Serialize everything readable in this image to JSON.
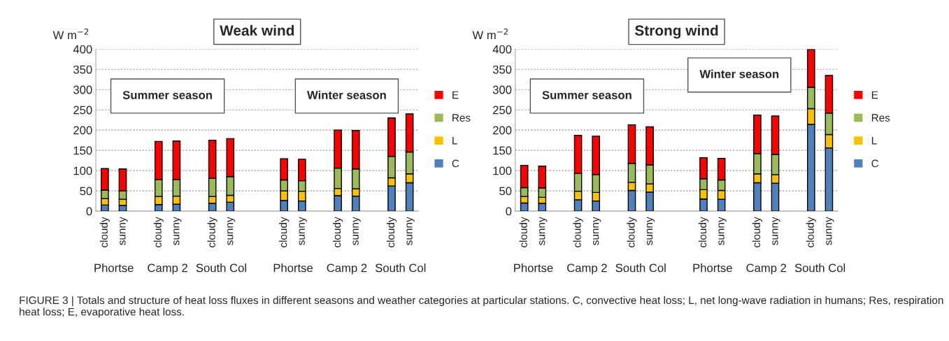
{
  "chart_data": [
    {
      "type": "bar",
      "title": "Weak wind",
      "ylabel": "W m$^{−2}$",
      "stacked": true,
      "legend": "right",
      "grid": "y",
      "ylim": [
        0,
        400
      ],
      "yticks": [
        0,
        50,
        100,
        150,
        200,
        250,
        300,
        350,
        400
      ],
      "categories": [
        "cloudy",
        "sunny",
        null,
        "cloudy",
        "sunny",
        null,
        "cloudy",
        "sunny",
        null,
        null,
        "cloudy",
        "sunny",
        null,
        "cloudy",
        "sunny",
        null,
        "cloudy",
        "sunny"
      ],
      "series": [
        {
          "name": "C",
          "color": "#4f81bd",
          "values": [
            15,
            14,
            null,
            16,
            17,
            null,
            19,
            22,
            null,
            null,
            26,
            25,
            null,
            38,
            37,
            null,
            62,
            70
          ]
        },
        {
          "name": "L",
          "color": "#ffc000",
          "values": [
            16,
            15,
            null,
            20,
            20,
            null,
            17,
            17,
            null,
            null,
            24,
            24,
            null,
            18,
            18,
            null,
            20,
            22
          ]
        },
        {
          "name": "Res",
          "color": "#9bbb59",
          "values": [
            21,
            21,
            null,
            42,
            41,
            null,
            45,
            46,
            null,
            null,
            27,
            26,
            null,
            50,
            49,
            null,
            53,
            54
          ]
        },
        {
          "name": "E",
          "color": "#ff0000",
          "values": [
            53,
            54,
            null,
            94,
            95,
            null,
            94,
            94,
            null,
            null,
            52,
            53,
            null,
            94,
            95,
            null,
            95,
            94
          ]
        }
      ],
      "annotations": [
        "Phortse",
        "Camp 2",
        "South Col",
        "Phortse",
        "Camp 2",
        "South Col",
        "Summer season",
        "Winter season"
      ]
    },
    {
      "type": "bar",
      "title": "Strong wind",
      "ylabel": "W m$^{−2}$",
      "stacked": true,
      "legend": "right",
      "grid": "y",
      "ylim": [
        0,
        400
      ],
      "yticks": [
        0,
        50,
        100,
        150,
        200,
        250,
        300,
        350,
        400
      ],
      "categories": [
        "cloudy",
        "sunny",
        null,
        "cloudy",
        "sunny",
        null,
        "cloudy",
        "sunny",
        null,
        null,
        "cloudy",
        "sunny",
        null,
        "cloudy",
        "sunny",
        null,
        "cloudy",
        "sunny"
      ],
      "series": [
        {
          "name": "C",
          "color": "#4f81bd",
          "values": [
            20,
            19,
            null,
            28,
            25,
            null,
            51,
            47,
            null,
            null,
            30,
            29,
            null,
            70,
            69,
            null,
            214,
            156
          ]
        },
        {
          "name": "L",
          "color": "#ffc000",
          "values": [
            16,
            15,
            null,
            21,
            21,
            null,
            20,
            20,
            null,
            null,
            23,
            22,
            null,
            22,
            21,
            null,
            39,
            33
          ]
        },
        {
          "name": "Res",
          "color": "#9bbb59",
          "values": [
            22,
            23,
            null,
            44,
            44,
            null,
            47,
            47,
            null,
            null,
            27,
            26,
            null,
            50,
            50,
            null,
            53,
            53
          ]
        },
        {
          "name": "E",
          "color": "#ff0000",
          "values": [
            55,
            54,
            null,
            94,
            95,
            null,
            95,
            94,
            null,
            null,
            52,
            53,
            null,
            95,
            95,
            null,
            93,
            93
          ]
        }
      ],
      "annotations": [
        "Phortse",
        "Camp 2",
        "South Col",
        "Phortse",
        "Camp 2",
        "South Col",
        "Summer season",
        "Winter season",
        "FIGURE 3 | Totals and structure of heat loss fluxes in different seasons and weather categories at particular stations. C, convective heat loss; L, net long-wave radiation in humans; Res, respiration heat loss; E, evaporative heat loss."
      ]
    }
  ]
}
